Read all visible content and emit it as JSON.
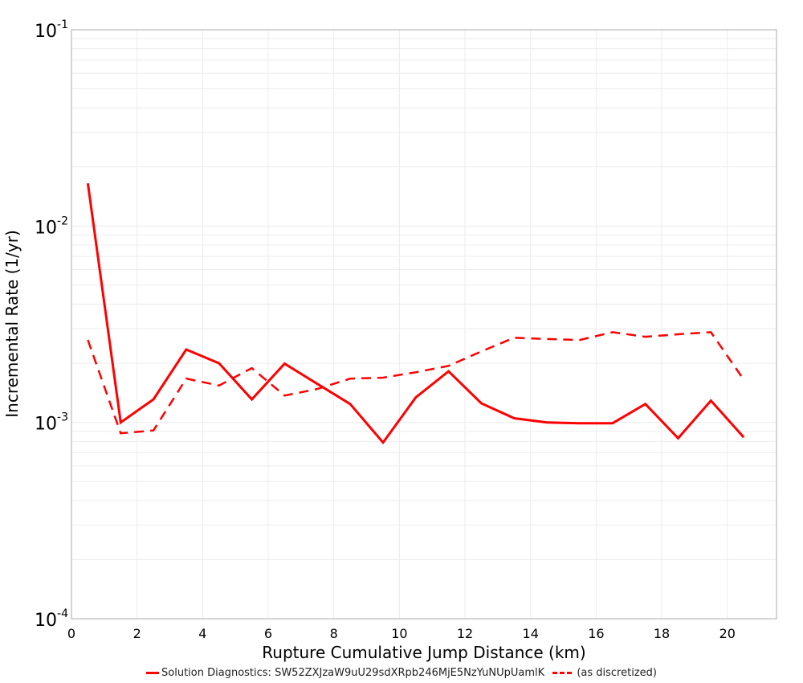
{
  "chart_data": {
    "type": "line",
    "title": "",
    "xlabel": "Rupture Cumulative Jump Distance (km)",
    "ylabel": "Incremental Rate (1/yr)",
    "xlim": [
      0,
      21.5
    ],
    "ylim": [
      0.0001,
      0.1
    ],
    "yscale": "log",
    "grid": true,
    "legend_position": "bottom",
    "x_ticks": [
      0,
      2,
      4,
      6,
      8,
      10,
      12,
      14,
      16,
      18,
      20
    ],
    "y_ticks": [
      {
        "base": "10",
        "exp": "-1",
        "value": 0.1
      },
      {
        "base": "10",
        "exp": "-2",
        "value": 0.01
      },
      {
        "base": "10",
        "exp": "-3",
        "value": 0.001
      },
      {
        "base": "10",
        "exp": "-4",
        "value": 0.0001
      }
    ],
    "x": [
      0.5,
      1.5,
      2.5,
      3.5,
      4.5,
      5.5,
      6.5,
      7.5,
      8.5,
      9.5,
      10.5,
      11.5,
      12.5,
      13.5,
      14.5,
      15.5,
      16.5,
      17.5,
      18.5,
      19.5,
      20.5
    ],
    "series": [
      {
        "name": "Solution Diagnostics: SW52ZXJzaW9uU29sdXRpb246MjE5NzYuNUpUamlK",
        "color": "#ff0000",
        "style": "solid",
        "values": [
          0.0165,
          0.001,
          0.00131,
          0.00235,
          0.002,
          0.00131,
          0.00199,
          0.00157,
          0.00124,
          0.00079,
          0.00134,
          0.00182,
          0.00125,
          0.00105,
          0.001,
          0.00099,
          0.00099,
          0.00124,
          0.00083,
          0.00129,
          0.00084
        ]
      },
      {
        "name": "(as discretized)",
        "color": "#ff0000",
        "style": "dashed",
        "values": [
          0.00263,
          0.00088,
          0.00091,
          0.00167,
          0.00154,
          0.00189,
          0.00137,
          0.00148,
          0.00167,
          0.00169,
          0.0018,
          0.00194,
          0.0023,
          0.0027,
          0.00266,
          0.00263,
          0.00288,
          0.00273,
          0.00281,
          0.00288,
          0.00165
        ]
      }
    ]
  },
  "legend": {
    "solid_label": "Solution Diagnostics: SW52ZXJzaW9uU29sdXRpb246MjE5NzYuNUpUamlK",
    "dashed_label": "(as discretized)"
  }
}
